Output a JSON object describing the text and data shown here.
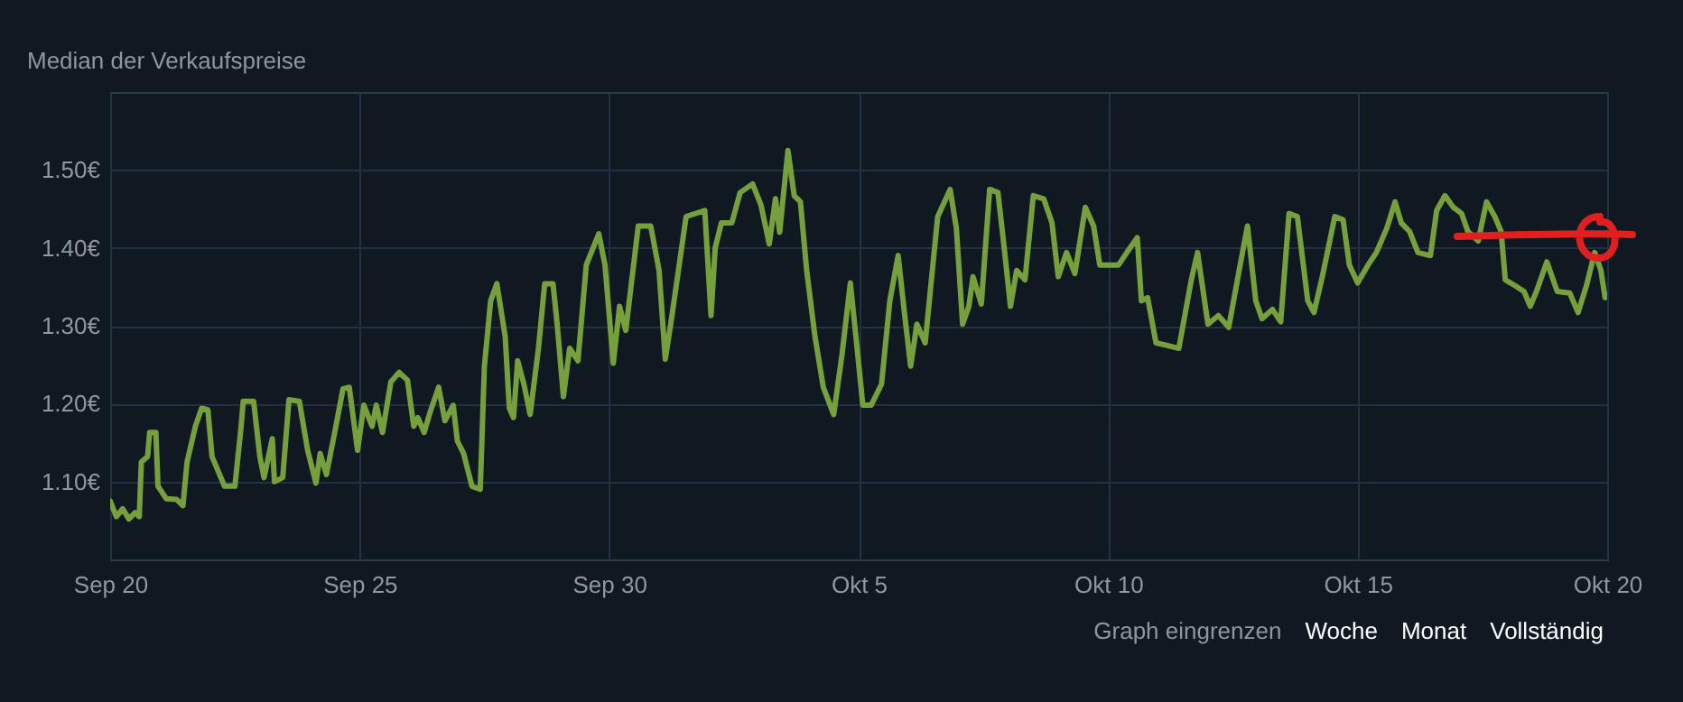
{
  "chart_data": {
    "type": "line",
    "title": "Median der Verkaufspreise",
    "annotations": [
      "Graph eingrenzen",
      "Woche",
      "Monat",
      "Vollständig"
    ],
    "xlim": [
      "--09-20",
      "--10-20"
    ],
    "xticks": [
      {
        "value": "--09-20",
        "label": "Sep 20"
      },
      {
        "value": "--09-25",
        "label": "Sep 25"
      },
      {
        "value": "--09-30",
        "label": "Sep 30"
      },
      {
        "value": "--10-05",
        "label": "Okt 5"
      },
      {
        "value": "--10-10",
        "label": "Okt 10"
      },
      {
        "value": "--10-15",
        "label": "Okt 15"
      },
      {
        "value": "--10-20",
        "label": "Okt 20"
      }
    ],
    "ylim": [
      1.0,
      1.6
    ],
    "yticks": [
      {
        "value": 1.1,
        "label": "1.10€"
      },
      {
        "value": 1.2,
        "label": "1.20€"
      },
      {
        "value": 1.3,
        "label": "1.30€"
      },
      {
        "value": 1.4,
        "label": "1.40€"
      },
      {
        "value": 1.5,
        "label": "1.50€"
      }
    ],
    "grid": true,
    "marker": "none",
    "series": [
      {
        "color": "#76a03c",
        "x": [
          "--09-20T00:00",
          "--09-20T03:00",
          "--09-20T06:00",
          "--09-20T09:00",
          "--09-20T12:00",
          "--09-20T14:00",
          "--09-20T15:00",
          "--09-20T18:00",
          "--09-20T19:00",
          "--09-20T22:00",
          "--09-20T23:00",
          "--09-21T03:00",
          "--09-21T08:00",
          "--09-21T11:00",
          "--09-21T13:00",
          "--09-21T17:00",
          "--09-21T20:00",
          "--09-21T23:00",
          "--09-22T01:00",
          "--09-22T04:00",
          "--09-22T07:00",
          "--09-22T12:00",
          "--09-22T15:00",
          "--09-22T16:00",
          "--09-22T21:00",
          "--09-23T00:00",
          "--09-23T02:00",
          "--09-23T06:00",
          "--09-23T07:00",
          "--09-23T11:00",
          "--09-23T14:00",
          "--09-23T19:00",
          "--09-23T23:00",
          "--09-24T03:00",
          "--09-24T05:00",
          "--09-24T08:00",
          "--09-24T12:00",
          "--09-24T16:00",
          "--09-24T19:00",
          "--09-24T23:00",
          "--09-25T02:00",
          "--09-25T06:00",
          "--09-25T08:00",
          "--09-25T11:00",
          "--09-25T15:00",
          "--09-25T19:00",
          "--09-25T23:00",
          "--09-26T02:00",
          "--09-26T04:00",
          "--09-26T07:00",
          "--09-26T10:00",
          "--09-26T14:00",
          "--09-26T17:00",
          "--09-26T21:00",
          "--09-26T23:00",
          "--09-27T02:00",
          "--09-27T06:00",
          "--09-27T10:00",
          "--09-27T12:00",
          "--09-27T15:00",
          "--09-27T18:00",
          "--09-27T22:00",
          "--09-28T00:00",
          "--09-28T02:00",
          "--09-28T04:00",
          "--09-28T07:00",
          "--09-28T10:00",
          "--09-28T14:00",
          "--09-28T17:00",
          "--09-28T21:00",
          "--09-28T23:00",
          "--09-29T02:00",
          "--09-29T05:00",
          "--09-29T09:00",
          "--09-29T13:00",
          "--09-29T19:00",
          "--09-29T22:00",
          "--09-30T02:00",
          "--09-30T05:00",
          "--09-30T08:00",
          "--09-30T14:00",
          "--09-30T20:00",
          "--10-01T00:00",
          "--10-01T03:00",
          "--10-01T06:00",
          "--10-01T13:00",
          "--10-01T22:00",
          "--10-02T01:00",
          "--10-02T03:00",
          "--10-02T06:00",
          "--10-02T11:00",
          "--10-02T15:00",
          "--10-02T21:00",
          "--10-03T01:00",
          "--10-03T05:00",
          "--10-03T08:00",
          "--10-03T10:00",
          "--10-03T14:00",
          "--10-03T17:00",
          "--10-03T20:00",
          "--10-03T23:00",
          "--10-04T03:00",
          "--10-04T07:00",
          "--10-04T12:00",
          "--10-04T16:00",
          "--10-04T20:00",
          "--10-04T23:00",
          "--10-05T02:00",
          "--10-05T06:00",
          "--10-05T11:00",
          "--10-05T15:00",
          "--10-05T19:00",
          "--10-05T22:00",
          "--10-06T01:00",
          "--10-06T04:00",
          "--10-06T08:00",
          "--10-06T14:00",
          "--10-06T20:00",
          "--10-06T23:00",
          "--10-07T02:00",
          "--10-07T05:00",
          "--10-07T07:00",
          "--10-07T11:00",
          "--10-07T15:00",
          "--10-07T19:00",
          "--10-07T22:00",
          "--10-08T01:00",
          "--10-08T04:00",
          "--10-08T08:00",
          "--10-08T12:00",
          "--10-08T17:00",
          "--10-08T21:00",
          "--10-09T00:00",
          "--10-09T04:00",
          "--10-09T08:00",
          "--10-09T13:00",
          "--10-09T17:00",
          "--10-09T20:00",
          "--10-10T05:00",
          "--10-10T09:00",
          "--10-10T14:00",
          "--10-10T16:00",
          "--10-10T19:00",
          "--10-10T23:00",
          "--10-11T04:00",
          "--10-11T10:00",
          "--10-11T16:00",
          "--10-11T19:00",
          "--10-12T00:00",
          "--10-12T05:00",
          "--10-12T10:00",
          "--10-12T15:00",
          "--10-12T19:00",
          "--10-12T23:00",
          "--10-13T02:00",
          "--10-13T07:00",
          "--10-13T11:00",
          "--10-13T15:00",
          "--10-13T19:00",
          "--10-14T00:00",
          "--10-14T03:00",
          "--10-14T07:00",
          "--10-14T13:00",
          "--10-14T17:00",
          "--10-14T20:00",
          "--10-15T00:00",
          "--10-15T05:00",
          "--10-15T09:00",
          "--10-15T14:00",
          "--10-15T18:00",
          "--10-15T21:00",
          "--10-16T01:00",
          "--10-16T05:00",
          "--10-16T11:00",
          "--10-16T14:00",
          "--10-16T18:00",
          "--10-16T22:00",
          "--10-17T02:00",
          "--10-17T05:00",
          "--10-17T10:00",
          "--10-17T14:00",
          "--10-17T18:00",
          "--10-17T21:00",
          "--10-17T23:00",
          "--10-18T04:00",
          "--10-18T08:00",
          "--10-18T11:00",
          "--10-18T14:00",
          "--10-18T19:00",
          "--10-19T00:00",
          "--10-19T06:00",
          "--10-19T10:00",
          "--10-19T14:00",
          "--10-19T18:00",
          "--10-19T21:00",
          "--10-19T23:00"
        ],
        "values": [
          1.075,
          1.055,
          1.065,
          1.052,
          1.06,
          1.055,
          1.125,
          1.132,
          1.163,
          1.163,
          1.094,
          1.078,
          1.077,
          1.069,
          1.125,
          1.171,
          1.194,
          1.192,
          1.132,
          1.113,
          1.094,
          1.094,
          1.171,
          1.203,
          1.203,
          1.132,
          1.105,
          1.155,
          1.1,
          1.105,
          1.205,
          1.203,
          1.14,
          1.098,
          1.136,
          1.109,
          1.163,
          1.219,
          1.221,
          1.14,
          1.198,
          1.171,
          1.198,
          1.163,
          1.228,
          1.24,
          1.23,
          1.171,
          1.182,
          1.163,
          1.19,
          1.221,
          1.178,
          1.198,
          1.152,
          1.136,
          1.094,
          1.09,
          1.248,
          1.332,
          1.354,
          1.286,
          1.194,
          1.182,
          1.255,
          1.225,
          1.186,
          1.271,
          1.354,
          1.354,
          1.302,
          1.209,
          1.271,
          1.255,
          1.378,
          1.418,
          1.378,
          1.252,
          1.325,
          1.294,
          1.428,
          1.428,
          1.371,
          1.257,
          1.309,
          1.44,
          1.448,
          1.313,
          1.4,
          1.432,
          1.432,
          1.471,
          1.482,
          1.455,
          1.405,
          1.463,
          1.42,
          1.525,
          1.467,
          1.459,
          1.371,
          1.286,
          1.221,
          1.186,
          1.263,
          1.355,
          1.278,
          1.198,
          1.198,
          1.225,
          1.332,
          1.39,
          1.317,
          1.248,
          1.302,
          1.278,
          1.44,
          1.475,
          1.425,
          1.302,
          1.325,
          1.363,
          1.328,
          1.475,
          1.471,
          1.4,
          1.325,
          1.371,
          1.359,
          1.467,
          1.463,
          1.432,
          1.363,
          1.394,
          1.367,
          1.452,
          1.428,
          1.378,
          1.378,
          1.394,
          1.413,
          1.332,
          1.336,
          1.278,
          1.275,
          1.271,
          1.359,
          1.394,
          1.302,
          1.313,
          1.298,
          1.371,
          1.428,
          1.332,
          1.309,
          1.321,
          1.305,
          1.444,
          1.44,
          1.332,
          1.317,
          1.363,
          1.44,
          1.436,
          1.378,
          1.355,
          1.378,
          1.394,
          1.425,
          1.459,
          1.432,
          1.421,
          1.394,
          1.39,
          1.448,
          1.467,
          1.452,
          1.444,
          1.421,
          1.409,
          1.459,
          1.44,
          1.421,
          1.359,
          1.351,
          1.344,
          1.325,
          1.344,
          1.382,
          1.344,
          1.342,
          1.317,
          1.351,
          1.394,
          1.371,
          1.336
        ]
      }
    ]
  }
}
